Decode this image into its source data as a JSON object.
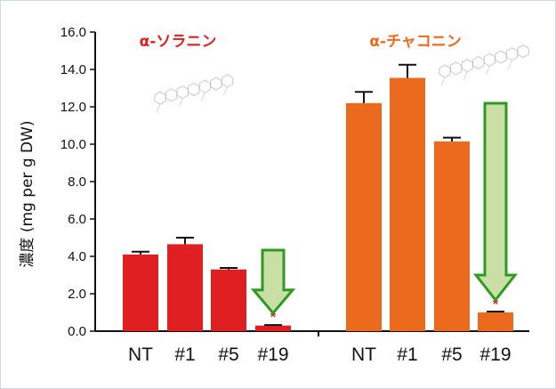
{
  "chart_data": [
    {
      "type": "bar",
      "title": "α-ソラニン",
      "categories": [
        "NT",
        "#1",
        "#5",
        "#19"
      ],
      "values": [
        4.1,
        4.65,
        3.3,
        0.3
      ],
      "errors": [
        0.15,
        0.35,
        0.08,
        0.03
      ],
      "highlight_category": "#19",
      "color": "#e02020",
      "ylabel": "濃度 (mg per g DW)",
      "ylim": [
        0,
        16
      ],
      "yticks": [
        "0.0",
        "2.0",
        "4.0",
        "6.0",
        "8.0",
        "10.0",
        "12.0",
        "14.0",
        "16.0"
      ]
    },
    {
      "type": "bar",
      "title": "α-チャコニン",
      "categories": [
        "NT",
        "#1",
        "#5",
        "#19"
      ],
      "values": [
        12.2,
        13.55,
        10.15,
        1.0
      ],
      "errors": [
        0.6,
        0.7,
        0.2,
        0.05
      ],
      "highlight_category": "#19",
      "color": "#ec6a1e",
      "ylim": [
        0,
        16
      ]
    }
  ],
  "colors": {
    "title_left": "#e02020",
    "title_right": "#ec6a1e",
    "arrow_fill": "#c9dfa6",
    "arrow_stroke": "#2f9a20",
    "asterisk": "#e02020"
  },
  "decorations": {
    "asterisk": "*",
    "arrow_icon": "down-arrow-icon",
    "molecule_icon": "molecule-structure-icon"
  }
}
